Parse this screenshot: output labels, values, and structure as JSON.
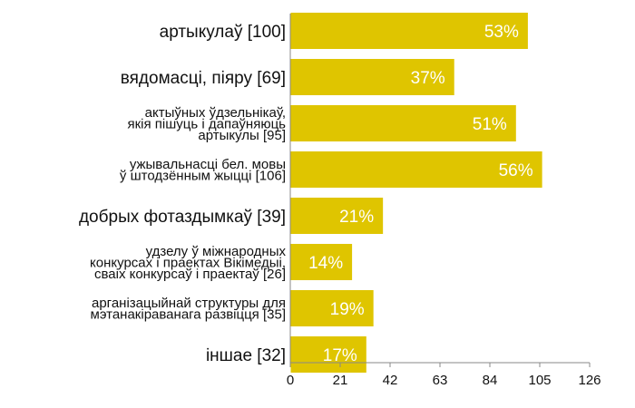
{
  "chart_data": {
    "type": "bar",
    "orientation": "horizontal",
    "title": "",
    "xlabel": "",
    "ylabel": "",
    "categories": [
      [
        "артыкулаў [100]"
      ],
      [
        "вядомасці, піяру [69]"
      ],
      [
        "актыўных ўдзельнікаў,",
        "якія пішуць і дапаўняюць",
        "артыкулы [95]"
      ],
      [
        "ужывальнасці бел. мовы",
        "ў штодзённым жыцці [106]"
      ],
      [
        "добрых фотаздымкаў [39]"
      ],
      [
        "удзелу ў міжнародных",
        "конкурсах і праектах Вікімедыі,",
        "сваіх конкурсаў і праектаў [26]"
      ],
      [
        "арганізацыйнай структуры для",
        "мэтанакіраванага развіцця [35]"
      ],
      [
        "іншае [32]"
      ]
    ],
    "values": [
      100,
      69,
      95,
      106,
      39,
      26,
      35,
      32
    ],
    "data_labels": [
      "53%",
      "37%",
      "51%",
      "56%",
      "21%",
      "14%",
      "19%",
      "17%"
    ],
    "xlim": [
      0,
      126
    ],
    "ticks": [
      "0",
      "21",
      "42",
      "63",
      "84",
      "105",
      "126"
    ],
    "tick_values": [
      0,
      21,
      42,
      63,
      84,
      105,
      126
    ],
    "grid": false,
    "legend": "none",
    "colors": {
      "bar": "#dfc500",
      "axis": "#888888",
      "text": "#111111",
      "bar_text": "#ffffff"
    }
  }
}
